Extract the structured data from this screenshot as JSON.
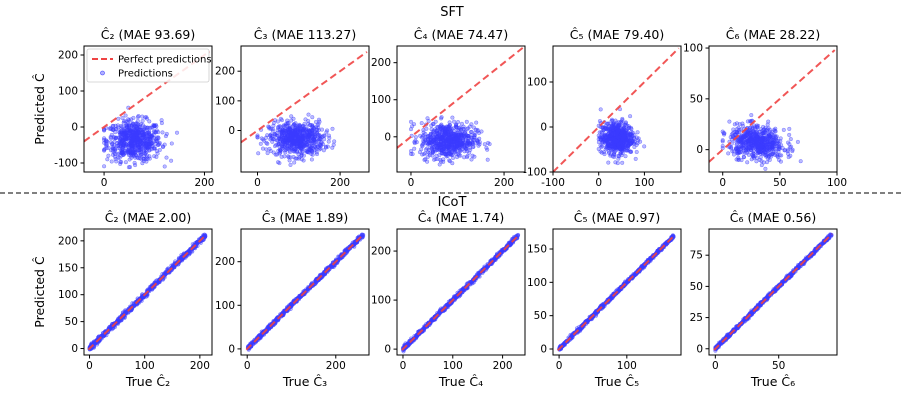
{
  "figure": {
    "sft_label": "SFT",
    "icot_label": "ICoT",
    "divider_style": "dashed"
  },
  "legend": {
    "perfect_label": "Perfect predictions",
    "pred_label": "Predictions"
  },
  "colors": {
    "perfect_line": "#ef4444",
    "points": "#3b3bff",
    "points_dense": "#3c2fd6"
  },
  "chart_data": [
    {
      "type": "scatter",
      "row": "SFT",
      "title": "Ĉ₂ (MAE 93.69)",
      "ylabel": "Predicted Ĉ",
      "xlabel": "",
      "xlim": [
        -40,
        215
      ],
      "ylim": [
        -125,
        225
      ],
      "xticks": [
        0,
        200
      ],
      "yticks": [
        -100,
        0,
        100,
        200
      ],
      "perfect_line": [
        -40,
        210
      ],
      "cloud": {
        "x_center": 60,
        "x_spread": 45,
        "y_center": -38,
        "y_spread": 28,
        "n": 650,
        "x_min": 0,
        "x_max": 205
      },
      "legend": "upper left",
      "grid": false
    },
    {
      "type": "scatter",
      "row": "SFT",
      "title": "Ĉ₃ (MAE 113.27)",
      "ylabel": "",
      "xlabel": "",
      "xlim": [
        -40,
        270
      ],
      "ylim": [
        -140,
        285
      ],
      "xticks": [
        0,
        200
      ],
      "yticks": [
        0,
        100,
        200
      ],
      "perfect_line": [
        -40,
        265
      ],
      "cloud": {
        "x_center": 95,
        "x_spread": 55,
        "y_center": -28,
        "y_spread": 28,
        "n": 650,
        "x_min": 0,
        "x_max": 260
      },
      "grid": false
    },
    {
      "type": "scatter",
      "row": "SFT",
      "title": "Ĉ₄ (MAE 74.47)",
      "ylabel": "",
      "xlabel": "",
      "xlim": [
        -30,
        245
      ],
      "ylim": [
        -95,
        245
      ],
      "xticks": [
        0,
        200
      ],
      "yticks": [
        0,
        100,
        200
      ],
      "perfect_line": [
        -30,
        240
      ],
      "cloud": {
        "x_center": 80,
        "x_spread": 50,
        "y_center": -10,
        "y_spread": 24,
        "n": 650,
        "x_min": 0,
        "x_max": 235
      },
      "grid": false
    },
    {
      "type": "scatter",
      "row": "SFT",
      "title": "Ĉ₅ (MAE 79.40)",
      "ylabel": "",
      "xlabel": "",
      "xlim": [
        -100,
        180
      ],
      "ylim": [
        -100,
        180
      ],
      "xticks": [
        -100,
        0,
        100
      ],
      "yticks": [
        -100,
        0,
        100
      ],
      "perfect_line": [
        -100,
        175
      ],
      "cloud": {
        "x_center": 40,
        "x_spread": 30,
        "y_center": -25,
        "y_spread": 18,
        "n": 600,
        "x_min": 0,
        "x_max": 165
      },
      "grid": false
    },
    {
      "type": "scatter",
      "row": "SFT",
      "title": "Ĉ₆ (MAE 28.22)",
      "ylabel": "",
      "xlabel": "",
      "xlim": [
        -12,
        100
      ],
      "ylim": [
        -22,
        102
      ],
      "xticks": [
        0,
        50,
        100
      ],
      "yticks": [
        0,
        50,
        100
      ],
      "perfect_line": [
        -12,
        98
      ],
      "cloud": {
        "x_center": 30,
        "x_spread": 20,
        "y_center": 7,
        "y_spread": 8,
        "n": 600,
        "x_min": 0,
        "x_max": 97,
        "slope": -0.12
      },
      "grid": false
    },
    {
      "type": "scatter",
      "row": "ICoT",
      "title": "Ĉ₂ (MAE 2.00)",
      "ylabel": "Predicted Ĉ",
      "xlabel": "True Ĉ₂",
      "xlim": [
        -10,
        222
      ],
      "ylim": [
        -12,
        222
      ],
      "xticks": [
        0,
        100,
        200
      ],
      "yticks": [
        0,
        50,
        100,
        150,
        200
      ],
      "perfect_line": [
        -2,
        210
      ],
      "diagonal": {
        "x_max": 210,
        "noise": 2.5,
        "n": 650
      },
      "grid": false
    },
    {
      "type": "scatter",
      "row": "ICoT",
      "title": "Ĉ₃ (MAE 1.89)",
      "ylabel": "",
      "xlabel": "True Ĉ₃",
      "xlim": [
        -14,
        275
      ],
      "ylim": [
        -14,
        275
      ],
      "xticks": [
        0,
        200
      ],
      "yticks": [
        0,
        100,
        200
      ],
      "perfect_line": [
        -2,
        262
      ],
      "diagonal": {
        "x_max": 262,
        "noise": 2.5,
        "n": 650
      },
      "grid": false
    },
    {
      "type": "scatter",
      "row": "ICoT",
      "title": "Ĉ₄ (MAE 1.74)",
      "ylabel": "",
      "xlabel": "True Ĉ₄",
      "xlim": [
        -12,
        245
      ],
      "ylim": [
        -12,
        245
      ],
      "xticks": [
        0,
        100,
        200
      ],
      "yticks": [
        0,
        100,
        200
      ],
      "perfect_line": [
        -2,
        232
      ],
      "diagonal": {
        "x_max": 232,
        "noise": 2.2,
        "n": 650
      },
      "grid": false
    },
    {
      "type": "scatter",
      "row": "ICoT",
      "title": "Ĉ₅ (MAE 0.97)",
      "ylabel": "",
      "xlabel": "True Ĉ₅",
      "xlim": [
        -9,
        180
      ],
      "ylim": [
        -9,
        180
      ],
      "xticks": [
        0,
        100
      ],
      "yticks": [
        0,
        50,
        100,
        150
      ],
      "perfect_line": [
        -2,
        170
      ],
      "diagonal": {
        "x_max": 170,
        "noise": 1.3,
        "n": 650
      },
      "grid": false
    },
    {
      "type": "scatter",
      "row": "ICoT",
      "title": "Ĉ₆ (MAE 0.56)",
      "ylabel": "",
      "xlabel": "True Ĉ₆",
      "xlim": [
        -5,
        96
      ],
      "ylim": [
        -5,
        96
      ],
      "xticks": [
        0,
        50
      ],
      "yticks": [
        0,
        25,
        50,
        75
      ],
      "perfect_line": [
        -1,
        92
      ],
      "diagonal": {
        "x_max": 92,
        "noise": 0.7,
        "n": 650
      },
      "grid": false
    }
  ]
}
